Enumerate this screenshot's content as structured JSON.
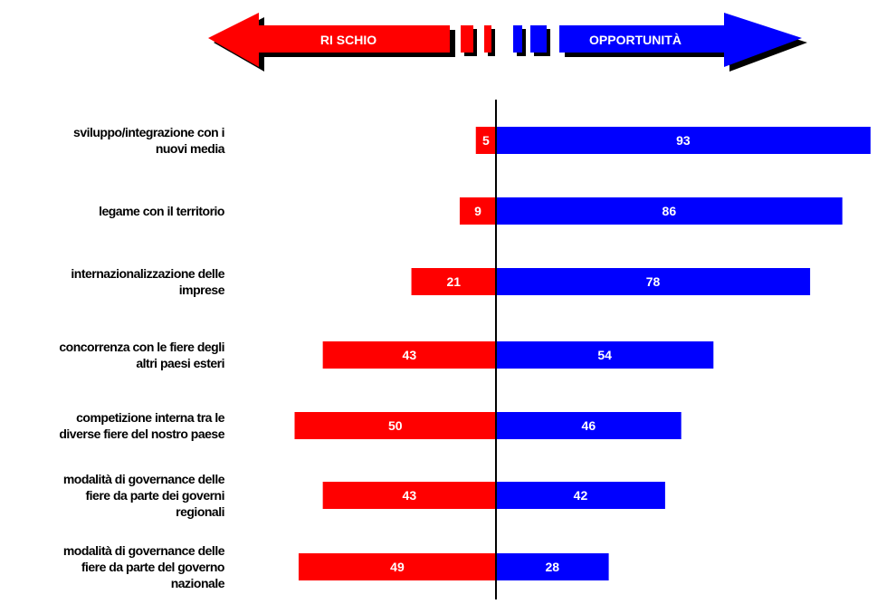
{
  "header": {
    "left_label": "RI SCHIO",
    "right_label": "OPPORTUNITÀ",
    "left_color": "#ff0000",
    "right_color": "#0000ff"
  },
  "chart_data": {
    "type": "bar",
    "orientation": "horizontal-diverging",
    "categories": [
      [
        "sviluppo/integrazione con i",
        "nuovi media"
      ],
      [
        "legame con il territorio"
      ],
      [
        "internazionalizzazione delle",
        "imprese"
      ],
      [
        "concorrenza con le fiere degli",
        "altri paesi esteri"
      ],
      [
        "competizione interna tra le",
        "diverse fiere del nostro paese"
      ],
      [
        "modalità di governance delle",
        "fiere da parte dei governi",
        "regionali"
      ],
      [
        "modalità di governance delle",
        "fiere da parte del governo",
        "nazionale"
      ]
    ],
    "series": [
      {
        "name": "RI SCHIO",
        "color": "#ff0000",
        "values": [
          5,
          9,
          21,
          43,
          50,
          43,
          49
        ]
      },
      {
        "name": "OPPORTUNITÀ",
        "color": "#0000ff",
        "values": [
          93,
          86,
          78,
          54,
          46,
          42,
          28
        ]
      }
    ],
    "value_labels": true,
    "grid": false,
    "legend": "top"
  }
}
